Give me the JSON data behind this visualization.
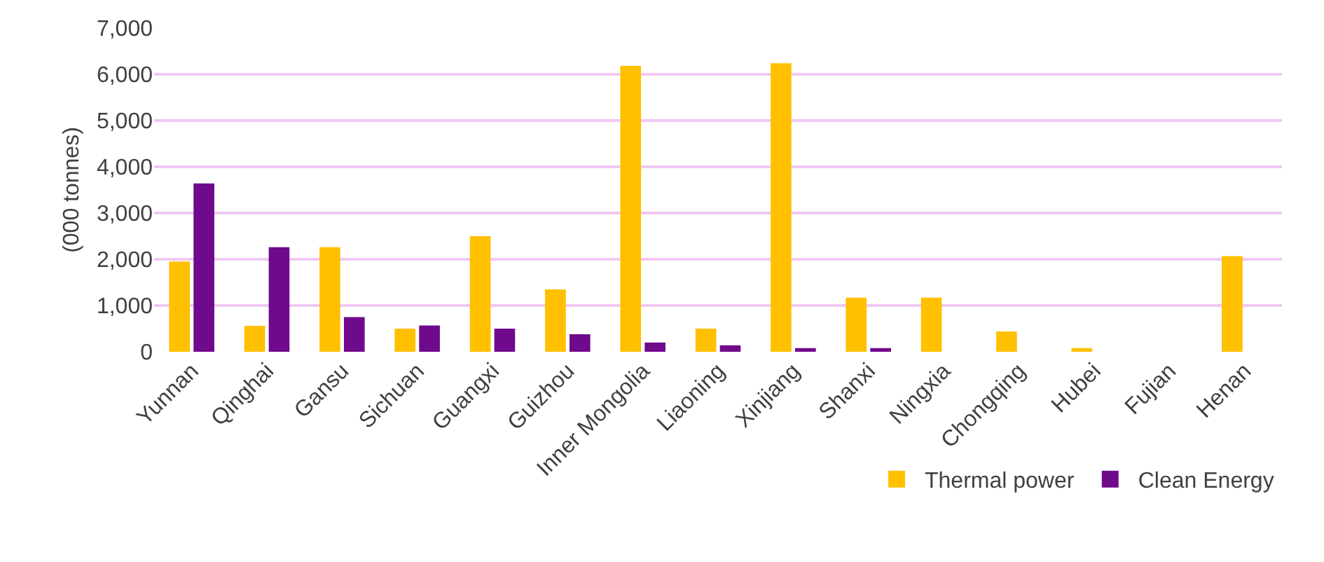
{
  "chart_data": {
    "type": "bar",
    "ylabel": "(000 tonnes)",
    "categories": [
      "Yunnan",
      "Qinghai",
      "Gansu",
      "Sichuan",
      "Guangxi",
      "Guizhou",
      "Inner Mongolia",
      "Liaoning",
      "Xinjiang",
      "Shanxi",
      "Ningxia",
      "Chongqing",
      "Hubei",
      "Fujian",
      "Henan"
    ],
    "series": [
      {
        "name": "Thermal power",
        "color": "#ffc000",
        "values": [
          1950,
          560,
          2260,
          500,
          2500,
          1350,
          6180,
          500,
          6240,
          1170,
          1170,
          440,
          80,
          0,
          2070
        ]
      },
      {
        "name": "Clean Energy",
        "color": "#6f0a8c",
        "values": [
          3640,
          2260,
          750,
          570,
          500,
          380,
          200,
          140,
          80,
          80,
          0,
          0,
          0,
          0,
          null
        ]
      }
    ],
    "ylim": [
      0,
      7000
    ],
    "yticks": [
      {
        "value": 0,
        "label": "0"
      },
      {
        "value": 1000,
        "label": "1,000"
      },
      {
        "value": 2000,
        "label": "2,000"
      },
      {
        "value": 3000,
        "label": "3,000"
      },
      {
        "value": 4000,
        "label": "4,000"
      },
      {
        "value": 5000,
        "label": "5,000"
      },
      {
        "value": 6000,
        "label": "6,000"
      },
      {
        "value": 7000,
        "label": "7,000"
      }
    ],
    "grid": "y",
    "legend": "bottom right"
  }
}
